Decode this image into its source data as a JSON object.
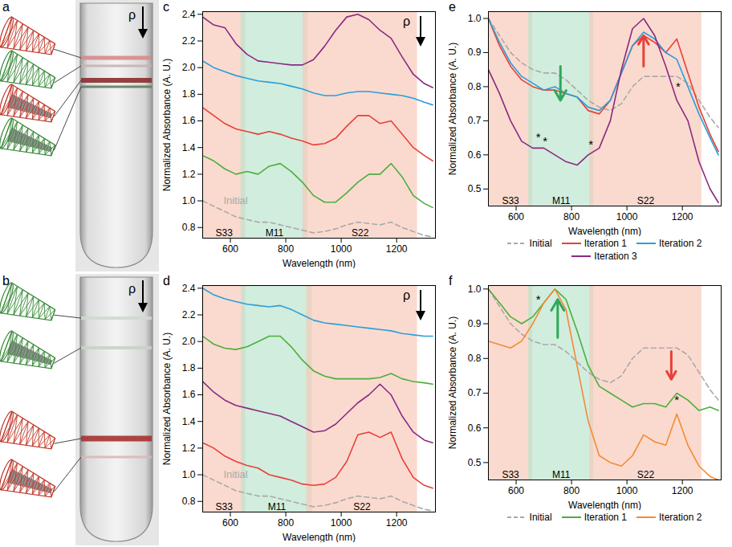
{
  "chart_data": [
    {
      "type": "line",
      "panel": "c",
      "x_label": "Wavelength (nm)",
      "y_label": "Normalized Absorbance (A. U.)",
      "xlim": [
        500,
        1340
      ],
      "xticks": [
        600,
        800,
        1000,
        1200
      ],
      "ylim": [
        0.72,
        2.42
      ],
      "yticks": [
        0.8,
        {
          "value": 1,
          "label": "1.0"
        },
        1.2,
        1.4,
        1.6,
        1.8,
        {
          "value": 2,
          "label": "2.0"
        },
        2.2,
        2.4
      ],
      "density_label": "ρ",
      "regions": [
        {
          "name": "S33",
          "range": [
            500,
            655
          ],
          "color": "#f7c6b6"
        },
        {
          "name": "M11",
          "range": [
            638,
            880
          ],
          "color": "#b9e3cc"
        },
        {
          "name": "S22",
          "range": [
            862,
            1275
          ],
          "color": "#f7c6b6"
        }
      ],
      "x": [
        500,
        540,
        580,
        620,
        660,
        700,
        740,
        780,
        820,
        860,
        900,
        940,
        980,
        1020,
        1060,
        1100,
        1140,
        1180,
        1220,
        1260,
        1300,
        1330
      ],
      "series": [
        {
          "color": "#a9a9a9",
          "line_style": "dashed",
          "values": [
            1.0,
            0.96,
            0.92,
            0.88,
            0.86,
            0.84,
            0.84,
            0.82,
            0.8,
            0.78,
            0.76,
            0.77,
            0.79,
            0.82,
            0.84,
            0.83,
            0.82,
            0.84,
            0.8,
            0.77,
            0.74,
            0.73
          ]
        },
        {
          "color": "#4caf3c",
          "line_style": "solid",
          "values": [
            1.34,
            1.3,
            1.24,
            1.2,
            1.22,
            1.2,
            1.26,
            1.28,
            1.22,
            1.14,
            1.04,
            0.99,
            0.99,
            1.06,
            1.14,
            1.2,
            1.2,
            1.28,
            1.18,
            1.04,
            0.98,
            0.95
          ]
        },
        {
          "color": "#e8403a",
          "line_style": "solid",
          "values": [
            1.7,
            1.64,
            1.58,
            1.54,
            1.52,
            1.5,
            1.52,
            1.5,
            1.47,
            1.45,
            1.42,
            1.43,
            1.47,
            1.56,
            1.64,
            1.64,
            1.58,
            1.6,
            1.5,
            1.4,
            1.34,
            1.3
          ]
        },
        {
          "color": "#2b9fd8",
          "line_style": "solid",
          "values": [
            2.05,
            2.0,
            1.97,
            1.94,
            1.92,
            1.9,
            1.89,
            1.88,
            1.86,
            1.84,
            1.81,
            1.79,
            1.79,
            1.81,
            1.82,
            1.82,
            1.81,
            1.8,
            1.79,
            1.77,
            1.74,
            1.72
          ]
        },
        {
          "color": "#8a2a82",
          "line_style": "solid",
          "values": [
            2.38,
            2.32,
            2.3,
            2.18,
            2.1,
            2.05,
            2.04,
            2.03,
            2.02,
            2.02,
            2.06,
            2.16,
            2.28,
            2.38,
            2.4,
            2.36,
            2.28,
            2.22,
            2.08,
            1.95,
            1.88,
            1.85
          ]
        }
      ],
      "annotations": [
        {
          "x": 575,
          "y": 1.0,
          "text": "Initial",
          "color": "#a9a9a9"
        }
      ]
    },
    {
      "type": "line",
      "panel": "d",
      "x_label": "Wavelength (nm)",
      "y_label": "Normalized Absorbance (A. U.)",
      "xlim": [
        500,
        1340
      ],
      "xticks": [
        600,
        800,
        1000,
        1200
      ],
      "ylim": [
        0.72,
        2.42
      ],
      "yticks": [
        0.8,
        {
          "value": 1,
          "label": "1.0"
        },
        1.2,
        1.4,
        1.6,
        1.8,
        {
          "value": 2,
          "label": "2.0"
        },
        2.2,
        2.4
      ],
      "density_label": "ρ",
      "regions": [
        {
          "name": "S33",
          "range": [
            500,
            655
          ],
          "color": "#f7c6b6"
        },
        {
          "name": "M11",
          "range": [
            640,
            895
          ],
          "color": "#b9e3cc"
        },
        {
          "name": "S22",
          "range": [
            875,
            1275
          ],
          "color": "#f7c6b6"
        }
      ],
      "x": [
        500,
        540,
        580,
        620,
        660,
        700,
        740,
        780,
        820,
        860,
        900,
        940,
        980,
        1020,
        1060,
        1100,
        1140,
        1180,
        1220,
        1260,
        1300,
        1330
      ],
      "series": [
        {
          "color": "#a9a9a9",
          "line_style": "dashed",
          "values": [
            1.0,
            0.96,
            0.92,
            0.88,
            0.86,
            0.84,
            0.84,
            0.82,
            0.8,
            0.78,
            0.76,
            0.77,
            0.79,
            0.82,
            0.84,
            0.83,
            0.82,
            0.84,
            0.8,
            0.77,
            0.74,
            0.73
          ]
        },
        {
          "color": "#e8403a",
          "line_style": "solid",
          "values": [
            1.24,
            1.2,
            1.14,
            1.1,
            1.07,
            1.05,
            1.0,
            0.98,
            0.96,
            0.93,
            0.92,
            0.93,
            0.98,
            1.1,
            1.3,
            1.32,
            1.28,
            1.32,
            1.12,
            0.98,
            0.92,
            0.9
          ]
        },
        {
          "color": "#8a2a82",
          "line_style": "solid",
          "values": [
            1.7,
            1.62,
            1.56,
            1.52,
            1.5,
            1.48,
            1.46,
            1.44,
            1.4,
            1.36,
            1.32,
            1.33,
            1.38,
            1.46,
            1.54,
            1.6,
            1.68,
            1.6,
            1.44,
            1.32,
            1.26,
            1.24
          ]
        },
        {
          "color": "#4caf3c",
          "line_style": "solid",
          "values": [
            2.04,
            1.98,
            1.95,
            1.94,
            1.96,
            2.0,
            2.04,
            2.04,
            1.96,
            1.86,
            1.78,
            1.74,
            1.72,
            1.72,
            1.72,
            1.72,
            1.73,
            1.76,
            1.72,
            1.7,
            1.69,
            1.68
          ]
        },
        {
          "color": "#2b9fd8",
          "line_style": "solid",
          "values": [
            2.4,
            2.35,
            2.32,
            2.3,
            2.28,
            2.27,
            2.26,
            2.27,
            2.24,
            2.2,
            2.16,
            2.14,
            2.13,
            2.12,
            2.11,
            2.1,
            2.09,
            2.08,
            2.06,
            2.05,
            2.04,
            2.04
          ]
        }
      ],
      "annotations": [
        {
          "x": 575,
          "y": 1.0,
          "text": "Initial",
          "color": "#a9a9a9"
        }
      ]
    },
    {
      "type": "line",
      "panel": "e",
      "x_label": "Wavelength (nm)",
      "y_label": "Normalized Absorbance (A. U.)",
      "xlim": [
        500,
        1340
      ],
      "xticks": [
        600,
        800,
        1000,
        1200
      ],
      "ylim": [
        0.45,
        1.02
      ],
      "yticks": [
        0.5,
        0.6,
        0.7,
        0.8,
        0.9,
        {
          "value": 1,
          "label": "1.0"
        }
      ],
      "legend": "bottom",
      "regions": [
        {
          "name": "S33",
          "range": [
            500,
            660
          ],
          "color": "#f7c6b6"
        },
        {
          "name": "M11",
          "range": [
            645,
            880
          ],
          "color": "#b9e3cc"
        },
        {
          "name": "S22",
          "range": [
            865,
            1270
          ],
          "color": "#f7c6b6"
        }
      ],
      "x": [
        500,
        540,
        580,
        620,
        660,
        700,
        740,
        780,
        820,
        860,
        900,
        940,
        980,
        1020,
        1060,
        1100,
        1140,
        1180,
        1220,
        1260,
        1300,
        1330
      ],
      "series": [
        {
          "name": "Initial",
          "color": "#a9a9a9",
          "line_style": "dashed",
          "values": [
            1.0,
            0.95,
            0.9,
            0.87,
            0.85,
            0.84,
            0.84,
            0.82,
            0.79,
            0.76,
            0.74,
            0.73,
            0.75,
            0.8,
            0.83,
            0.83,
            0.83,
            0.83,
            0.81,
            0.76,
            0.71,
            0.68
          ]
        },
        {
          "name": "Iteration 1",
          "color": "#e8403a",
          "line_style": "solid",
          "values": [
            1.0,
            0.92,
            0.86,
            0.82,
            0.8,
            0.79,
            0.79,
            0.78,
            0.77,
            0.73,
            0.72,
            0.76,
            0.84,
            0.92,
            0.95,
            0.93,
            0.9,
            0.94,
            0.84,
            0.74,
            0.66,
            0.61
          ]
        },
        {
          "name": "Iteration 2",
          "color": "#2b9fd8",
          "line_style": "solid",
          "values": [
            1.0,
            0.93,
            0.87,
            0.83,
            0.81,
            0.79,
            0.8,
            0.78,
            0.77,
            0.74,
            0.73,
            0.76,
            0.84,
            0.92,
            0.96,
            0.94,
            0.9,
            0.88,
            0.8,
            0.72,
            0.65,
            0.6
          ]
        },
        {
          "name": "Iteration 3",
          "color": "#8a2a82",
          "line_style": "solid",
          "values": [
            0.85,
            0.78,
            0.7,
            0.64,
            0.62,
            0.62,
            0.6,
            0.58,
            0.57,
            0.6,
            0.62,
            0.7,
            0.85,
            0.97,
            1.0,
            0.95,
            0.86,
            0.76,
            0.7,
            0.58,
            0.5,
            0.46
          ]
        }
      ],
      "annotations": [
        {
          "x": 680,
          "y": 0.65,
          "text": "*",
          "color": "#000000"
        },
        {
          "x": 705,
          "y": 0.64,
          "text": "*",
          "color": "#000000"
        },
        {
          "x": 870,
          "y": 0.63,
          "text": "*",
          "color": "#000000"
        },
        {
          "x": 1185,
          "y": 0.8,
          "text": "*",
          "color": "#000000"
        }
      ],
      "arrows": [
        {
          "x": 1060,
          "y1": 0.86,
          "y2": 0.95,
          "color": "#e8403a"
        },
        {
          "x": 760,
          "y1": 0.86,
          "y2": 0.76,
          "color": "#2fa85a"
        }
      ]
    },
    {
      "type": "line",
      "panel": "f",
      "x_label": "Wavelength (nm)",
      "y_label": "Normalized Absorbance (A. U.)",
      "xlim": [
        500,
        1340
      ],
      "xticks": [
        600,
        800,
        1000,
        1200
      ],
      "ylim": [
        0.45,
        1.01
      ],
      "yticks": [
        0.5,
        0.6,
        0.7,
        0.8,
        0.9,
        {
          "value": 1,
          "label": "1.0"
        }
      ],
      "legend": "bottom",
      "regions": [
        {
          "name": "S33",
          "range": [
            500,
            660
          ],
          "color": "#f7c6b6"
        },
        {
          "name": "M11",
          "range": [
            645,
            880
          ],
          "color": "#b9e3cc"
        },
        {
          "name": "S22",
          "range": [
            865,
            1270
          ],
          "color": "#f7c6b6"
        }
      ],
      "x": [
        500,
        540,
        580,
        620,
        660,
        700,
        740,
        780,
        820,
        860,
        900,
        940,
        980,
        1020,
        1060,
        1100,
        1140,
        1180,
        1220,
        1260,
        1300,
        1330
      ],
      "series": [
        {
          "name": "Initial",
          "color": "#a9a9a9",
          "line_style": "dashed",
          "values": [
            1.0,
            0.95,
            0.9,
            0.87,
            0.85,
            0.84,
            0.84,
            0.82,
            0.79,
            0.76,
            0.74,
            0.73,
            0.75,
            0.8,
            0.83,
            0.83,
            0.83,
            0.83,
            0.81,
            0.76,
            0.71,
            0.68
          ]
        },
        {
          "name": "Iteration 1",
          "color": "#4caf3c",
          "line_style": "solid",
          "values": [
            1.0,
            0.96,
            0.92,
            0.9,
            0.92,
            0.96,
            1.0,
            0.97,
            0.88,
            0.78,
            0.72,
            0.7,
            0.68,
            0.66,
            0.67,
            0.67,
            0.66,
            0.7,
            0.68,
            0.65,
            0.66,
            0.65
          ]
        },
        {
          "name": "Iteration 2",
          "color": "#f58a34",
          "line_style": "solid",
          "values": [
            0.85,
            0.84,
            0.83,
            0.85,
            0.9,
            0.96,
            1.0,
            0.94,
            0.78,
            0.62,
            0.52,
            0.5,
            0.49,
            0.52,
            0.58,
            0.56,
            0.55,
            0.64,
            0.55,
            0.49,
            0.46,
            0.45
          ]
        }
      ],
      "annotations": [
        {
          "x": 680,
          "y": 0.97,
          "text": "*",
          "color": "#000000"
        },
        {
          "x": 1180,
          "y": 0.68,
          "text": "*",
          "color": "#000000"
        }
      ],
      "arrows": [
        {
          "x": 750,
          "y1": 0.86,
          "y2": 0.97,
          "color": "#2fa85a"
        },
        {
          "x": 1160,
          "y1": 0.82,
          "y2": 0.74,
          "color": "#e8403a"
        }
      ]
    }
  ],
  "photos": [
    {
      "panel": "a",
      "density_label": "ρ"
    },
    {
      "panel": "b",
      "density_label": "ρ"
    }
  ]
}
